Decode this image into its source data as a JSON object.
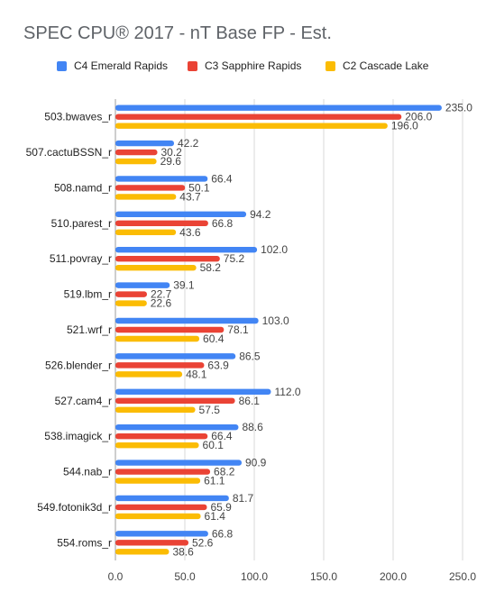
{
  "chart_data": {
    "type": "bar",
    "orientation": "horizontal",
    "title": "SPEC CPU® 2017 - nT Base FP - Est.",
    "categories": [
      "503.bwaves_r",
      "507.cactuBSSN_r",
      "508.namd_r",
      "510.parest_r",
      "511.povray_r",
      "519.lbm_r",
      "521.wrf_r",
      "526.blender_r",
      "527.cam4_r",
      "538.imagick_r",
      "544.nab_r",
      "549.fotonik3d_r",
      "554.roms_r"
    ],
    "series": [
      {
        "name": "C4 Emerald Rapids",
        "color": "#4285f4",
        "values": [
          235.0,
          42.2,
          66.4,
          94.2,
          102.0,
          39.1,
          103.0,
          86.5,
          112.0,
          88.6,
          90.9,
          81.7,
          66.8
        ]
      },
      {
        "name": "C3 Sapphire Rapids",
        "color": "#ea4335",
        "values": [
          206.0,
          30.2,
          50.1,
          66.8,
          75.2,
          22.7,
          78.1,
          63.9,
          86.1,
          66.4,
          68.2,
          65.9,
          52.6
        ]
      },
      {
        "name": "C2 Cascade Lake",
        "color": "#fbbc04",
        "values": [
          196.0,
          29.6,
          43.7,
          43.6,
          58.2,
          22.6,
          60.4,
          48.1,
          57.5,
          60.1,
          61.1,
          61.4,
          38.6
        ]
      }
    ],
    "xlim": [
      0,
      250
    ],
    "x_ticks": [
      "0.0",
      "50.0",
      "100.0",
      "150.0",
      "200.0",
      "250.0"
    ],
    "grid": "vertical",
    "legend_position": "top",
    "data_labels": true
  }
}
